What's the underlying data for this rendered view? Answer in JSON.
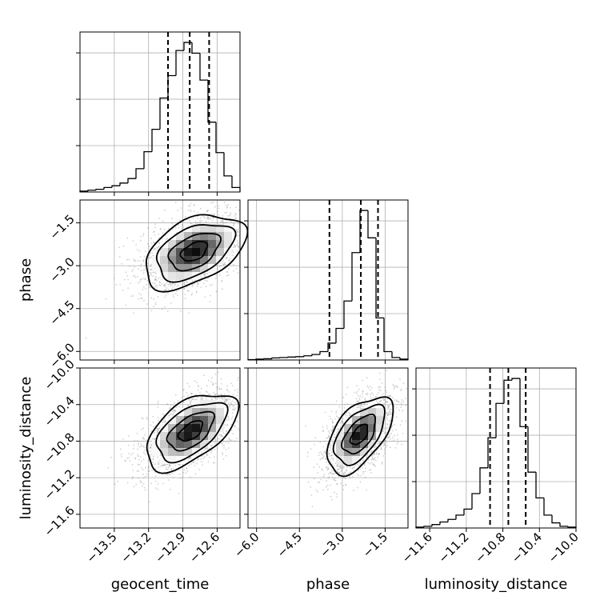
{
  "chart_data": {
    "type": "corner",
    "parameters": [
      "geocent_time",
      "phase",
      "luminosity_distance"
    ],
    "ranges": {
      "geocent_time": [
        -13.8,
        -12.4
      ],
      "phase": [
        -6.3,
        -0.7
      ],
      "luminosity_distance": [
        -11.75,
        -10.0
      ]
    },
    "ticks": {
      "geocent_time": [
        -13.5,
        -13.2,
        -12.9,
        -12.6
      ],
      "phase": [
        -6.0,
        -4.5,
        -3.0,
        -1.5
      ],
      "luminosity_distance": [
        -11.6,
        -11.2,
        -10.8,
        -10.4,
        -10.0
      ]
    },
    "tick_labels": {
      "geocent_time": [
        "−13.5",
        "−13.2",
        "−12.9",
        "−12.6"
      ],
      "phase": [
        "−6.0",
        "−4.5",
        "−3.0",
        "−1.5"
      ],
      "luminosity_distance": [
        "−11.6",
        "−11.2",
        "−10.8",
        "−10.4",
        "−10.0"
      ]
    },
    "quantiles": {
      "geocent_time": [
        -13.03,
        -12.84,
        -12.67
      ],
      "phase": [
        -3.45,
        -2.35,
        -1.75
      ],
      "luminosity_distance": [
        -10.94,
        -10.74,
        -10.55
      ]
    },
    "histograms": {
      "geocent_time": {
        "bin_edges": [
          -13.8,
          -13.73,
          -13.66,
          -13.59,
          -13.52,
          -13.45,
          -13.38,
          -13.31,
          -13.24,
          -13.17,
          -13.1,
          -13.03,
          -12.96,
          -12.89,
          -12.82,
          -12.75,
          -12.68,
          -12.61,
          -12.54,
          -12.47,
          -12.4
        ],
        "counts": [
          1,
          2,
          3,
          5,
          7,
          10,
          15,
          26,
          45,
          70,
          105,
          130,
          158,
          167,
          155,
          125,
          78,
          44,
          18,
          5
        ]
      },
      "phase": {
        "bin_edges": [
          -6.3,
          -6.02,
          -5.74,
          -5.46,
          -5.18,
          -4.9,
          -4.62,
          -4.34,
          -4.06,
          -3.78,
          -3.5,
          -3.22,
          -2.94,
          -2.66,
          -2.38,
          -2.1,
          -1.82,
          -1.54,
          -1.26,
          -0.98,
          -0.7
        ],
        "counts": [
          1,
          2,
          3,
          5,
          6,
          7,
          8,
          10,
          13,
          20,
          40,
          75,
          140,
          255,
          355,
          290,
          100,
          20,
          6,
          2
        ]
      },
      "luminosity_distance": {
        "bin_edges": [
          -11.75,
          -11.6625,
          -11.575,
          -11.4875,
          -11.4,
          -11.3125,
          -11.225,
          -11.1375,
          -11.05,
          -10.9625,
          -10.875,
          -10.7875,
          -10.7,
          -10.6125,
          -10.525,
          -10.4375,
          -10.35,
          -10.2625,
          -10.175,
          -10.0875,
          -10.0
        ],
        "counts": [
          1,
          2,
          4,
          7,
          10,
          15,
          22,
          40,
          70,
          105,
          145,
          172,
          174,
          118,
          65,
          35,
          15,
          6,
          2,
          1
        ]
      }
    },
    "density_peaks": [
      {
        "x": "geocent_time",
        "y": "phase",
        "x_value": -12.8,
        "y_value": -2.5
      },
      {
        "x": "geocent_time",
        "y": "luminosity_distance",
        "x_value": -12.83,
        "y_value": -10.69
      },
      {
        "x": "phase",
        "y": "luminosity_distance",
        "x_value": -2.4,
        "y_value": -10.73
      }
    ],
    "grid": true,
    "legend": "none",
    "title": "",
    "xlabel": "",
    "ylabel": ""
  }
}
